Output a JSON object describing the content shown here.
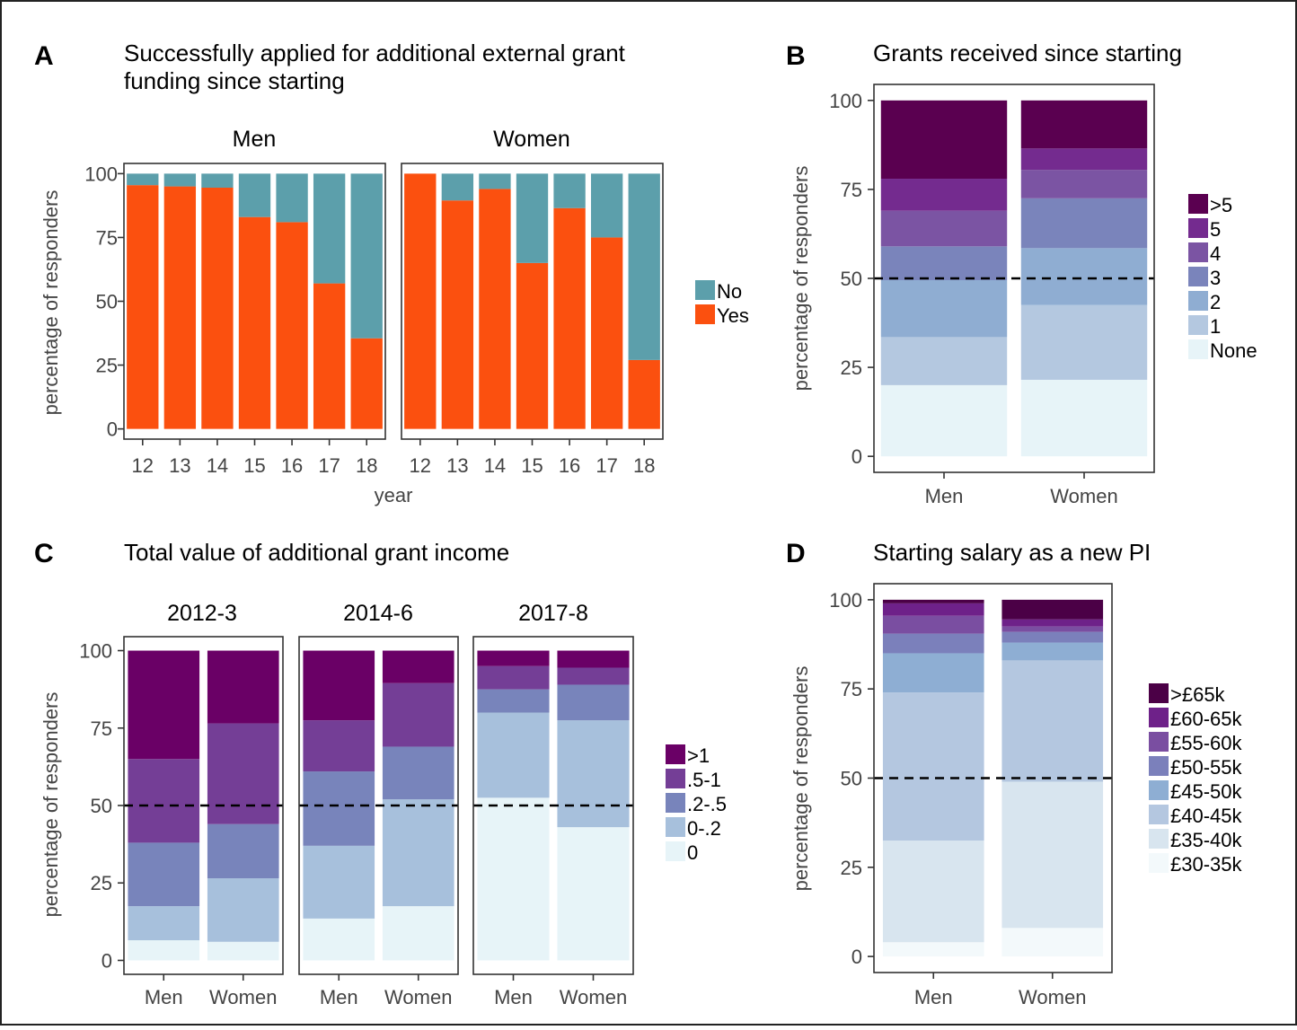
{
  "figure": {
    "border_color": "#222222"
  },
  "chart_data": [
    {
      "id": "A",
      "panel_label": "A",
      "type": "bar",
      "stacked": true,
      "title": "Successfully applied for additional external grant funding since starting",
      "title_lines": [
        "Successfully applied for additional external grant",
        "funding since starting"
      ],
      "xlabel": "year",
      "ylabel": "percentage of responders",
      "ylim": [
        0,
        100
      ],
      "yticks": [
        0,
        25,
        50,
        75,
        100
      ],
      "grid": false,
      "legend_position": "right",
      "legend_order": [
        "No",
        "Yes"
      ],
      "stack_order": [
        "Yes",
        "No"
      ],
      "colors": {
        "No": "#5c9fab",
        "Yes": "#fb500f"
      },
      "facets": [
        {
          "name": "Men",
          "categories": [
            "12",
            "13",
            "14",
            "15",
            "16",
            "17",
            "18"
          ],
          "series": [
            {
              "name": "Yes",
              "values": [
                95.5,
                95,
                94.5,
                83,
                81,
                57,
                35.5
              ]
            },
            {
              "name": "No",
              "values": [
                4.5,
                5,
                5.5,
                17,
                19,
                43,
                64.5
              ]
            }
          ]
        },
        {
          "name": "Women",
          "categories": [
            "12",
            "13",
            "14",
            "15",
            "16",
            "17",
            "18"
          ],
          "series": [
            {
              "name": "Yes",
              "values": [
                100,
                89.5,
                94,
                65,
                86.5,
                75,
                27
              ]
            },
            {
              "name": "No",
              "values": [
                0,
                10.5,
                6,
                35,
                13.5,
                25,
                73
              ]
            }
          ]
        }
      ]
    },
    {
      "id": "B",
      "panel_label": "B",
      "type": "bar",
      "stacked": true,
      "title": "Grants received since starting",
      "title_lines": [
        "Grants received since starting"
      ],
      "xlabel": "",
      "ylabel": "percentage of responders",
      "ylim": [
        0,
        100
      ],
      "yticks": [
        0,
        25,
        50,
        75,
        100
      ],
      "grid": false,
      "reference_line": 50,
      "legend_position": "right",
      "legend_order": [
        ">5",
        "5",
        "4",
        "3",
        "2",
        "1",
        "None"
      ],
      "stack_order": [
        "None",
        "1",
        "2",
        "3",
        "4",
        "5",
        ">5"
      ],
      "colors": {
        ">5": "#5a0050",
        "5": "#742b8f",
        "4": "#7b54a3",
        "3": "#7a84bb",
        "2": "#8fadd2",
        "1": "#b4c8e0",
        "None": "#e7f4f8"
      },
      "facets": [
        {
          "name": "",
          "categories": [
            "Men",
            "Women"
          ],
          "series": [
            {
              "name": "None",
              "values": [
                20,
                21.5
              ]
            },
            {
              "name": "1",
              "values": [
                13.5,
                21
              ]
            },
            {
              "name": "2",
              "values": [
                16,
                16
              ]
            },
            {
              "name": "3",
              "values": [
                9.5,
                14
              ]
            },
            {
              "name": "4",
              "values": [
                10,
                8
              ]
            },
            {
              "name": "5",
              "values": [
                9,
                6
              ]
            },
            {
              "name": ">5",
              "values": [
                22,
                13.5
              ]
            }
          ]
        }
      ]
    },
    {
      "id": "C",
      "panel_label": "C",
      "type": "bar",
      "stacked": true,
      "title": "Total value of additional grant income",
      "title_lines": [
        "Total value of additional grant income"
      ],
      "xlabel": "",
      "ylabel": "percentage of responders",
      "ylim": [
        0,
        100
      ],
      "yticks": [
        0,
        25,
        50,
        75,
        100
      ],
      "grid": false,
      "reference_line": 50,
      "legend_position": "right",
      "legend_order": [
        ">1",
        ".5-1",
        ".2-.5",
        "0-.2",
        "0"
      ],
      "stack_order": [
        "0",
        "0-.2",
        ".2-.5",
        ".5-1",
        ">1"
      ],
      "colors": {
        ">1": "#6a0066",
        ".5-1": "#743e96",
        ".2-.5": "#7884bb",
        "0-.2": "#a7c0dc",
        "0": "#e7f4f8"
      },
      "facets": [
        {
          "name": "2012-3",
          "categories": [
            "Men",
            "Women"
          ],
          "series": [
            {
              "name": "0",
              "values": [
                6.5,
                6
              ]
            },
            {
              "name": "0-.2",
              "values": [
                11,
                20.5
              ]
            },
            {
              "name": ".2-.5",
              "values": [
                20.5,
                17.5
              ]
            },
            {
              "name": ".5-1",
              "values": [
                27,
                32.5
              ]
            },
            {
              "name": ">1",
              "values": [
                35,
                23.5
              ]
            }
          ]
        },
        {
          "name": "2014-6",
          "categories": [
            "Men",
            "Women"
          ],
          "series": [
            {
              "name": "0",
              "values": [
                13.5,
                17.5
              ]
            },
            {
              "name": "0-.2",
              "values": [
                23.5,
                34.5
              ]
            },
            {
              "name": ".2-.5",
              "values": [
                24,
                17
              ]
            },
            {
              "name": ".5-1",
              "values": [
                16.5,
                20.5
              ]
            },
            {
              "name": ">1",
              "values": [
                22.5,
                10.5
              ]
            }
          ]
        },
        {
          "name": "2017-8",
          "categories": [
            "Men",
            "Women"
          ],
          "series": [
            {
              "name": "0",
              "values": [
                52.5,
                43
              ]
            },
            {
              "name": "0-.2",
              "values": [
                27.5,
                34.5
              ]
            },
            {
              "name": ".2-.5",
              "values": [
                7.5,
                11.5
              ]
            },
            {
              "name": ".5-1",
              "values": [
                7.5,
                5.5
              ]
            },
            {
              "name": ">1",
              "values": [
                5,
                5.5
              ]
            }
          ]
        }
      ]
    },
    {
      "id": "D",
      "panel_label": "D",
      "type": "bar",
      "stacked": true,
      "title": "Starting salary as a new PI",
      "title_lines": [
        "Starting salary as a new PI"
      ],
      "xlabel": "",
      "ylabel": "percentage of responders",
      "ylim": [
        0,
        100
      ],
      "yticks": [
        0,
        25,
        50,
        75,
        100
      ],
      "grid": false,
      "reference_line": 50,
      "legend_position": "right",
      "legend_order": [
        ">£65k",
        "£60-65k",
        "£55-60k",
        "£50-55k",
        "£45-50k",
        "£40-45k",
        "£35-40k",
        "£30-35k"
      ],
      "stack_order": [
        "£30-35k",
        "£35-40k",
        "£40-45k",
        "£45-50k",
        "£50-55k",
        "£55-60k",
        "£60-65k",
        ">£65k"
      ],
      "colors": {
        ">£65k": "#4b0046",
        "£60-65k": "#6e2189",
        "£55-60k": "#7a4ea1",
        "£50-55k": "#7b80bb",
        "£45-50k": "#8eaed3",
        "£40-45k": "#b4c7e0",
        "£35-40k": "#d8e5ef",
        "£30-35k": "#f3f9fb"
      },
      "facets": [
        {
          "name": "",
          "categories": [
            "Men",
            "Women"
          ],
          "series": [
            {
              "name": "£30-35k",
              "values": [
                4,
                8
              ]
            },
            {
              "name": "£35-40k",
              "values": [
                28.5,
                41
              ]
            },
            {
              "name": "£40-45k",
              "values": [
                41.5,
                34
              ]
            },
            {
              "name": "£45-50k",
              "values": [
                11,
                5
              ]
            },
            {
              "name": "£50-55k",
              "values": [
                5.5,
                3
              ]
            },
            {
              "name": "£55-60k",
              "values": [
                5,
                1.5
              ]
            },
            {
              "name": "£60-65k",
              "values": [
                3.5,
                2
              ]
            },
            {
              "name": ">£65k",
              "values": [
                1,
                5.5
              ]
            }
          ]
        }
      ]
    }
  ]
}
